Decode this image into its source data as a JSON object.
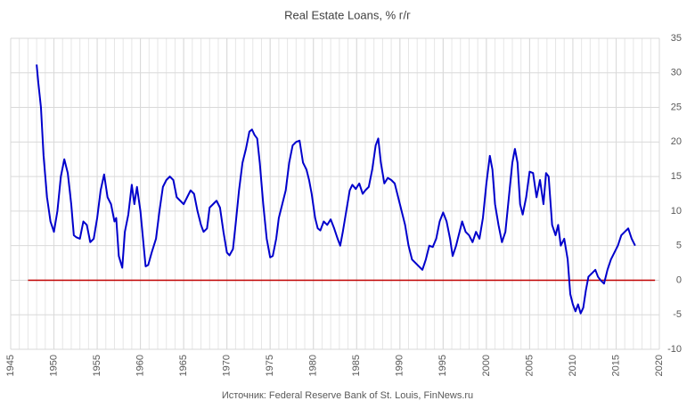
{
  "chart_data": {
    "type": "line",
    "title": "Real Estate Loans, % г/г",
    "source": "Источник: Federal Reserve Bank of St. Louis, FinNews.ru",
    "xlim": [
      1945,
      2020
    ],
    "xticks": [
      1945,
      1950,
      1955,
      1960,
      1965,
      1970,
      1975,
      1980,
      1985,
      1990,
      1995,
      2000,
      2005,
      2010,
      2015,
      2020
    ],
    "ylim": [
      -10,
      35
    ],
    "yticks": [
      -10,
      -5,
      0,
      5,
      10,
      15,
      20,
      25,
      30,
      35
    ],
    "grid": true,
    "minor_xgrid_step": 1,
    "y_axis_side": "right",
    "series": [
      {
        "color": "#0000cc",
        "x": [
          1948.0,
          1948.2,
          1948.5,
          1948.8,
          1949.2,
          1949.6,
          1950.0,
          1950.4,
          1950.8,
          1951.2,
          1951.6,
          1952.0,
          1952.3,
          1952.6,
          1953.0,
          1953.4,
          1953.8,
          1954.2,
          1954.6,
          1955.0,
          1955.4,
          1955.8,
          1956.2,
          1956.6,
          1957.0,
          1957.2,
          1957.5,
          1957.9,
          1958.2,
          1958.6,
          1959.0,
          1959.3,
          1959.6,
          1960.0,
          1960.3,
          1960.6,
          1960.9,
          1961.3,
          1961.8,
          1962.2,
          1962.6,
          1963.0,
          1963.4,
          1963.8,
          1964.2,
          1964.6,
          1965.0,
          1965.4,
          1965.8,
          1966.2,
          1966.6,
          1967.0,
          1967.3,
          1967.7,
          1968.0,
          1968.4,
          1968.8,
          1969.2,
          1969.6,
          1970.0,
          1970.3,
          1970.7,
          1971.0,
          1971.4,
          1971.8,
          1972.2,
          1972.6,
          1972.9,
          1973.2,
          1973.5,
          1973.8,
          1974.2,
          1974.6,
          1975.0,
          1975.3,
          1975.7,
          1976.0,
          1976.4,
          1976.8,
          1977.2,
          1977.6,
          1978.0,
          1978.4,
          1978.8,
          1979.2,
          1979.5,
          1979.8,
          1980.2,
          1980.5,
          1980.8,
          1981.2,
          1981.6,
          1982.0,
          1982.4,
          1982.8,
          1983.1,
          1983.4,
          1983.8,
          1984.2,
          1984.5,
          1984.9,
          1985.3,
          1985.7,
          1986.0,
          1986.4,
          1986.8,
          1987.2,
          1987.5,
          1987.8,
          1988.2,
          1988.6,
          1989.0,
          1989.4,
          1989.8,
          1990.2,
          1990.6,
          1991.0,
          1991.4,
          1991.8,
          1992.2,
          1992.6,
          1993.0,
          1993.4,
          1993.8,
          1994.2,
          1994.6,
          1995.0,
          1995.4,
          1995.8,
          1996.1,
          1996.5,
          1996.9,
          1997.2,
          1997.6,
          1998.0,
          1998.4,
          1998.8,
          1999.2,
          1999.6,
          2000.0,
          2000.4,
          2000.7,
          2001.0,
          2001.4,
          2001.8,
          2002.2,
          2002.6,
          2003.0,
          2003.3,
          2003.6,
          2003.9,
          2004.2,
          2004.6,
          2005.0,
          2005.4,
          2005.8,
          2006.2,
          2006.6,
          2006.9,
          2007.2,
          2007.6,
          2008.0,
          2008.3,
          2008.6,
          2009.0,
          2009.4,
          2009.7,
          2010.0,
          2010.3,
          2010.6,
          2010.9,
          2011.2,
          2011.5,
          2011.8,
          2012.2,
          2012.6,
          2012.9,
          2013.2,
          2013.6,
          2014.0,
          2014.4,
          2014.8,
          2015.2,
          2015.6,
          2016.0,
          2016.4,
          2016.8,
          2017.2
        ],
        "values": [
          31.2,
          28.5,
          25,
          18,
          12,
          8.5,
          7,
          10,
          15,
          17.5,
          15.5,
          11,
          6.5,
          6.2,
          6,
          8.5,
          8,
          5.5,
          6,
          9,
          13,
          15.3,
          12,
          11,
          8.5,
          9,
          3.5,
          1.8,
          7,
          9.5,
          13.8,
          11,
          13.5,
          10,
          6,
          2,
          2.2,
          4,
          6,
          10,
          13.5,
          14.5,
          15,
          14.5,
          12,
          11.5,
          11,
          12,
          13,
          12.5,
          10,
          8,
          7,
          7.5,
          10.5,
          11,
          11.5,
          10.5,
          7,
          4,
          3.6,
          4.5,
          8,
          13,
          17,
          19,
          21.5,
          21.8,
          21,
          20.5,
          17,
          11,
          6,
          3.3,
          3.5,
          6,
          9,
          11,
          13,
          17,
          19.5,
          20,
          20.2,
          17,
          16,
          14.5,
          12.5,
          9,
          7.5,
          7.2,
          8.5,
          8,
          8.8,
          7.5,
          6,
          5,
          7,
          10,
          13,
          13.8,
          13.2,
          14,
          12.5,
          13,
          13.5,
          16,
          19.5,
          20.5,
          17,
          14,
          14.8,
          14.5,
          14,
          12,
          10,
          8,
          5,
          3,
          2.5,
          2,
          1.5,
          3,
          5,
          4.8,
          6,
          8.5,
          9.8,
          8.5,
          6,
          3.5,
          5,
          7,
          8.5,
          7,
          6.5,
          5.5,
          7,
          6,
          9,
          14,
          18,
          16,
          11,
          8,
          5.5,
          7,
          12,
          17,
          19,
          17,
          11,
          9.5,
          12,
          15.7,
          15.5,
          12,
          14.5,
          11,
          15.5,
          15,
          8,
          6.5,
          8,
          5,
          6,
          3,
          -2,
          -3.5,
          -4.5,
          -3.5,
          -4.8,
          -4,
          -1.5,
          0.5,
          1,
          1.5,
          0.5,
          0,
          -0.5,
          1.5,
          3,
          4,
          5,
          6.5,
          7,
          7.5,
          6,
          5
        ]
      },
      {
        "color": "#c00000",
        "x": [
          1947,
          2019.5
        ],
        "values": [
          0,
          0
        ]
      }
    ]
  }
}
